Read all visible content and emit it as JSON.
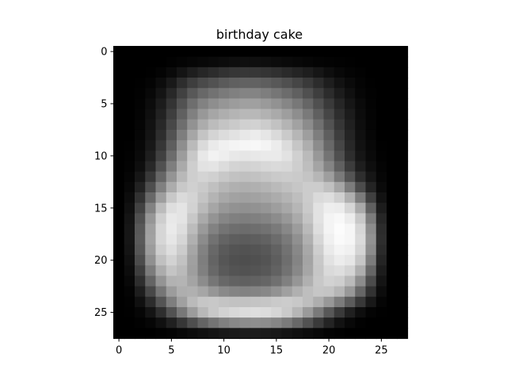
{
  "chart_data": {
    "type": "heatmap",
    "title": "birthday cake",
    "xlabel": "",
    "ylabel": "",
    "colormap": "gray",
    "xlim": [
      -0.5,
      27.5
    ],
    "ylim": [
      27.5,
      -0.5
    ],
    "xticks": [
      0,
      5,
      10,
      15,
      20,
      25
    ],
    "yticks": [
      0,
      5,
      10,
      15,
      20,
      25
    ],
    "grid": false,
    "rows": 28,
    "cols": 28,
    "value_range": [
      0,
      255
    ],
    "values": [
      [
        0,
        0,
        0,
        0,
        0,
        0,
        0,
        0,
        0,
        0,
        0,
        0,
        0,
        0,
        0,
        0,
        0,
        0,
        0,
        0,
        0,
        0,
        0,
        0,
        0,
        0,
        0,
        0
      ],
      [
        0,
        0,
        0,
        0,
        0,
        2,
        4,
        6,
        8,
        10,
        12,
        14,
        15,
        15,
        14,
        12,
        10,
        8,
        6,
        4,
        3,
        2,
        1,
        0,
        0,
        0,
        0,
        0
      ],
      [
        0,
        0,
        0,
        1,
        4,
        10,
        20,
        30,
        38,
        44,
        50,
        54,
        55,
        55,
        52,
        48,
        42,
        36,
        30,
        22,
        14,
        8,
        4,
        2,
        0,
        0,
        0,
        0
      ],
      [
        0,
        0,
        1,
        4,
        12,
        25,
        45,
        62,
        74,
        82,
        90,
        96,
        98,
        98,
        94,
        88,
        80,
        70,
        58,
        44,
        30,
        18,
        10,
        4,
        1,
        0,
        0,
        0
      ],
      [
        0,
        0,
        2,
        8,
        20,
        40,
        65,
        88,
        104,
        114,
        122,
        128,
        132,
        132,
        126,
        118,
        108,
        96,
        80,
        62,
        44,
        28,
        16,
        6,
        2,
        0,
        0,
        0
      ],
      [
        0,
        0,
        3,
        12,
        28,
        52,
        82,
        110,
        130,
        142,
        150,
        156,
        160,
        160,
        154,
        146,
        134,
        120,
        102,
        80,
        58,
        38,
        22,
        10,
        3,
        0,
        0,
        0
      ],
      [
        0,
        0,
        4,
        15,
        34,
        62,
        96,
        128,
        152,
        166,
        174,
        180,
        184,
        184,
        178,
        170,
        158,
        142,
        122,
        96,
        70,
        46,
        28,
        12,
        4,
        0,
        0,
        0
      ],
      [
        0,
        0,
        5,
        18,
        40,
        72,
        110,
        146,
        172,
        188,
        196,
        202,
        208,
        210,
        204,
        194,
        180,
        162,
        140,
        112,
        82,
        54,
        32,
        14,
        5,
        0,
        0,
        0
      ],
      [
        0,
        0,
        6,
        20,
        46,
        82,
        126,
        166,
        196,
        212,
        220,
        226,
        232,
        236,
        230,
        218,
        202,
        182,
        158,
        126,
        94,
        62,
        36,
        16,
        6,
        0,
        0,
        0
      ],
      [
        0,
        1,
        8,
        24,
        54,
        94,
        142,
        186,
        218,
        234,
        240,
        244,
        246,
        248,
        244,
        236,
        220,
        198,
        174,
        140,
        104,
        70,
        40,
        18,
        8,
        1,
        0,
        0
      ],
      [
        0,
        2,
        10,
        30,
        64,
        108,
        156,
        200,
        232,
        242,
        238,
        232,
        230,
        232,
        234,
        234,
        226,
        208,
        186,
        152,
        116,
        80,
        46,
        22,
        10,
        2,
        0,
        0
      ],
      [
        0,
        3,
        14,
        40,
        80,
        126,
        170,
        206,
        226,
        228,
        220,
        212,
        210,
        212,
        216,
        218,
        216,
        206,
        190,
        164,
        132,
        96,
        60,
        30,
        14,
        4,
        0,
        0
      ],
      [
        0,
        5,
        22,
        56,
        102,
        148,
        184,
        206,
        212,
        208,
        200,
        194,
        192,
        194,
        198,
        202,
        204,
        202,
        196,
        182,
        158,
        122,
        84,
        46,
        22,
        6,
        0,
        0
      ],
      [
        0,
        8,
        34,
        78,
        128,
        172,
        200,
        208,
        202,
        192,
        182,
        176,
        174,
        176,
        180,
        186,
        192,
        198,
        204,
        204,
        192,
        166,
        124,
        76,
        36,
        10,
        0,
        0
      ],
      [
        0,
        12,
        50,
        104,
        158,
        200,
        218,
        212,
        196,
        180,
        168,
        162,
        160,
        162,
        166,
        172,
        180,
        190,
        204,
        218,
        222,
        208,
        176,
        124,
        64,
        18,
        0,
        0
      ],
      [
        0,
        16,
        66,
        130,
        188,
        222,
        228,
        210,
        186,
        166,
        152,
        146,
        144,
        146,
        150,
        158,
        168,
        182,
        202,
        226,
        238,
        236,
        214,
        170,
        96,
        28,
        0,
        0
      ],
      [
        0,
        20,
        80,
        150,
        206,
        232,
        228,
        200,
        170,
        148,
        134,
        128,
        126,
        128,
        132,
        140,
        152,
        170,
        196,
        226,
        244,
        248,
        236,
        200,
        124,
        38,
        0,
        0
      ],
      [
        0,
        22,
        88,
        160,
        214,
        234,
        222,
        188,
        154,
        130,
        116,
        110,
        108,
        110,
        114,
        122,
        136,
        156,
        186,
        222,
        244,
        252,
        246,
        214,
        140,
        44,
        0,
        0
      ],
      [
        0,
        22,
        90,
        162,
        214,
        230,
        214,
        176,
        140,
        114,
        100,
        94,
        92,
        94,
        98,
        108,
        122,
        144,
        176,
        214,
        240,
        250,
        246,
        218,
        146,
        46,
        0,
        0
      ],
      [
        0,
        20,
        86,
        156,
        206,
        222,
        204,
        166,
        130,
        104,
        90,
        84,
        82,
        84,
        88,
        98,
        114,
        136,
        168,
        206,
        234,
        244,
        240,
        212,
        140,
        42,
        0,
        0
      ],
      [
        0,
        16,
        76,
        144,
        192,
        210,
        194,
        160,
        126,
        100,
        86,
        80,
        78,
        80,
        84,
        94,
        110,
        132,
        164,
        200,
        226,
        236,
        230,
        198,
        124,
        36,
        0,
        0
      ],
      [
        0,
        12,
        62,
        124,
        172,
        196,
        186,
        158,
        128,
        104,
        90,
        84,
        82,
        84,
        88,
        98,
        114,
        136,
        166,
        198,
        218,
        222,
        212,
        174,
        102,
        28,
        0,
        0
      ],
      [
        0,
        8,
        46,
        100,
        148,
        178,
        180,
        164,
        140,
        118,
        104,
        98,
        96,
        98,
        102,
        112,
        128,
        150,
        176,
        200,
        210,
        206,
        186,
        140,
        76,
        20,
        0,
        0
      ],
      [
        0,
        4,
        30,
        72,
        118,
        156,
        174,
        176,
        166,
        150,
        138,
        132,
        130,
        132,
        136,
        146,
        160,
        176,
        190,
        198,
        196,
        182,
        152,
        102,
        50,
        12,
        0,
        0
      ],
      [
        0,
        2,
        16,
        44,
        84,
        126,
        160,
        186,
        198,
        200,
        196,
        194,
        194,
        196,
        198,
        202,
        204,
        200,
        190,
        174,
        152,
        124,
        92,
        56,
        24,
        5,
        0,
        0
      ],
      [
        0,
        1,
        6,
        20,
        46,
        82,
        120,
        156,
        184,
        200,
        210,
        216,
        220,
        222,
        220,
        214,
        202,
        182,
        154,
        122,
        88,
        58,
        32,
        14,
        4,
        1,
        0,
        0
      ],
      [
        0,
        0,
        2,
        6,
        16,
        32,
        54,
        78,
        100,
        116,
        128,
        136,
        140,
        142,
        140,
        134,
        122,
        104,
        82,
        58,
        36,
        18,
        8,
        2,
        0,
        0,
        0,
        0
      ],
      [
        0,
        0,
        0,
        0,
        2,
        4,
        8,
        12,
        16,
        20,
        24,
        26,
        28,
        28,
        26,
        24,
        20,
        16,
        12,
        8,
        4,
        2,
        0,
        0,
        0,
        0,
        0,
        0
      ]
    ]
  }
}
